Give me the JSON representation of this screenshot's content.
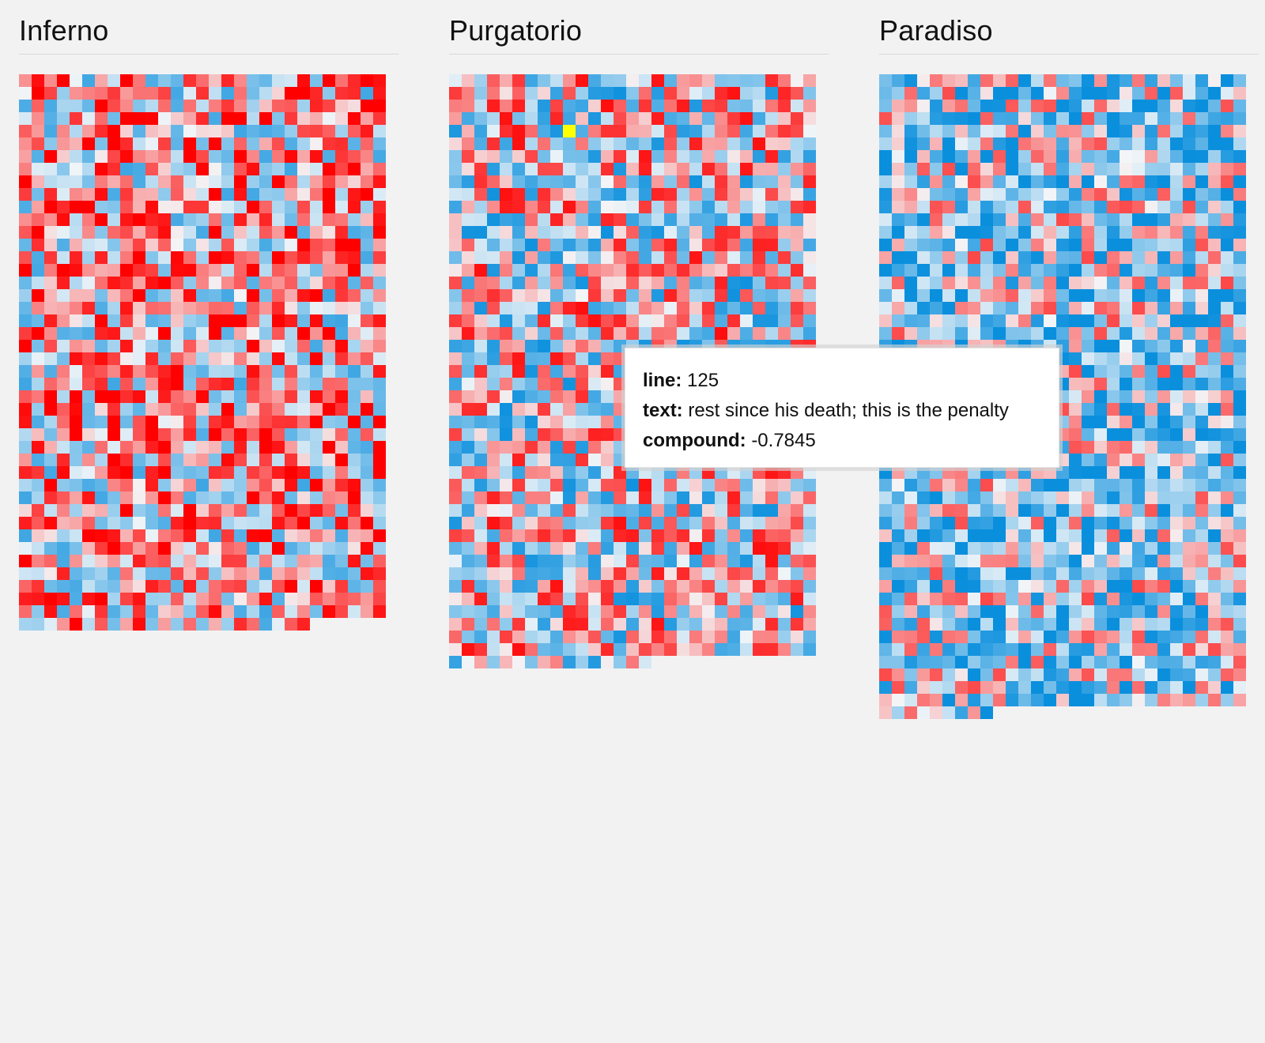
{
  "chart_data": [
    {
      "type": "heatmap",
      "title": "Inferno",
      "columns": 29,
      "cells": 1270,
      "sentiment": "mostly negative",
      "value_range": [
        -1,
        1
      ],
      "palette": {
        "negative": "#ff0000",
        "neutral": "#f4f6f8",
        "positive": "#0a8fdd"
      }
    },
    {
      "type": "heatmap",
      "title": "Purgatorio",
      "columns": 29,
      "cells": 1350,
      "sentiment": "mixed",
      "value_range": [
        -1,
        1
      ],
      "palette": {
        "negative": "#ff0000",
        "neutral": "#f4f6f8",
        "positive": "#0a8fdd"
      }
    },
    {
      "type": "heatmap",
      "title": "Paradiso",
      "columns": 29,
      "cells": 1459,
      "sentiment": "mostly positive",
      "value_range": [
        -1,
        1
      ],
      "palette": {
        "negative": "#ff0000",
        "neutral": "#f4f6f8",
        "positive": "#0a8fdd"
      }
    }
  ],
  "tooltip": {
    "line_label": "line:",
    "line_value": "125",
    "text_label": "text:",
    "text_value": "rest since his death; this is the penalty",
    "compound_label": "compound:",
    "compound_value": "-0.7845"
  },
  "highlight": {
    "panel": 1,
    "line": 125,
    "color": "#ffff00"
  }
}
